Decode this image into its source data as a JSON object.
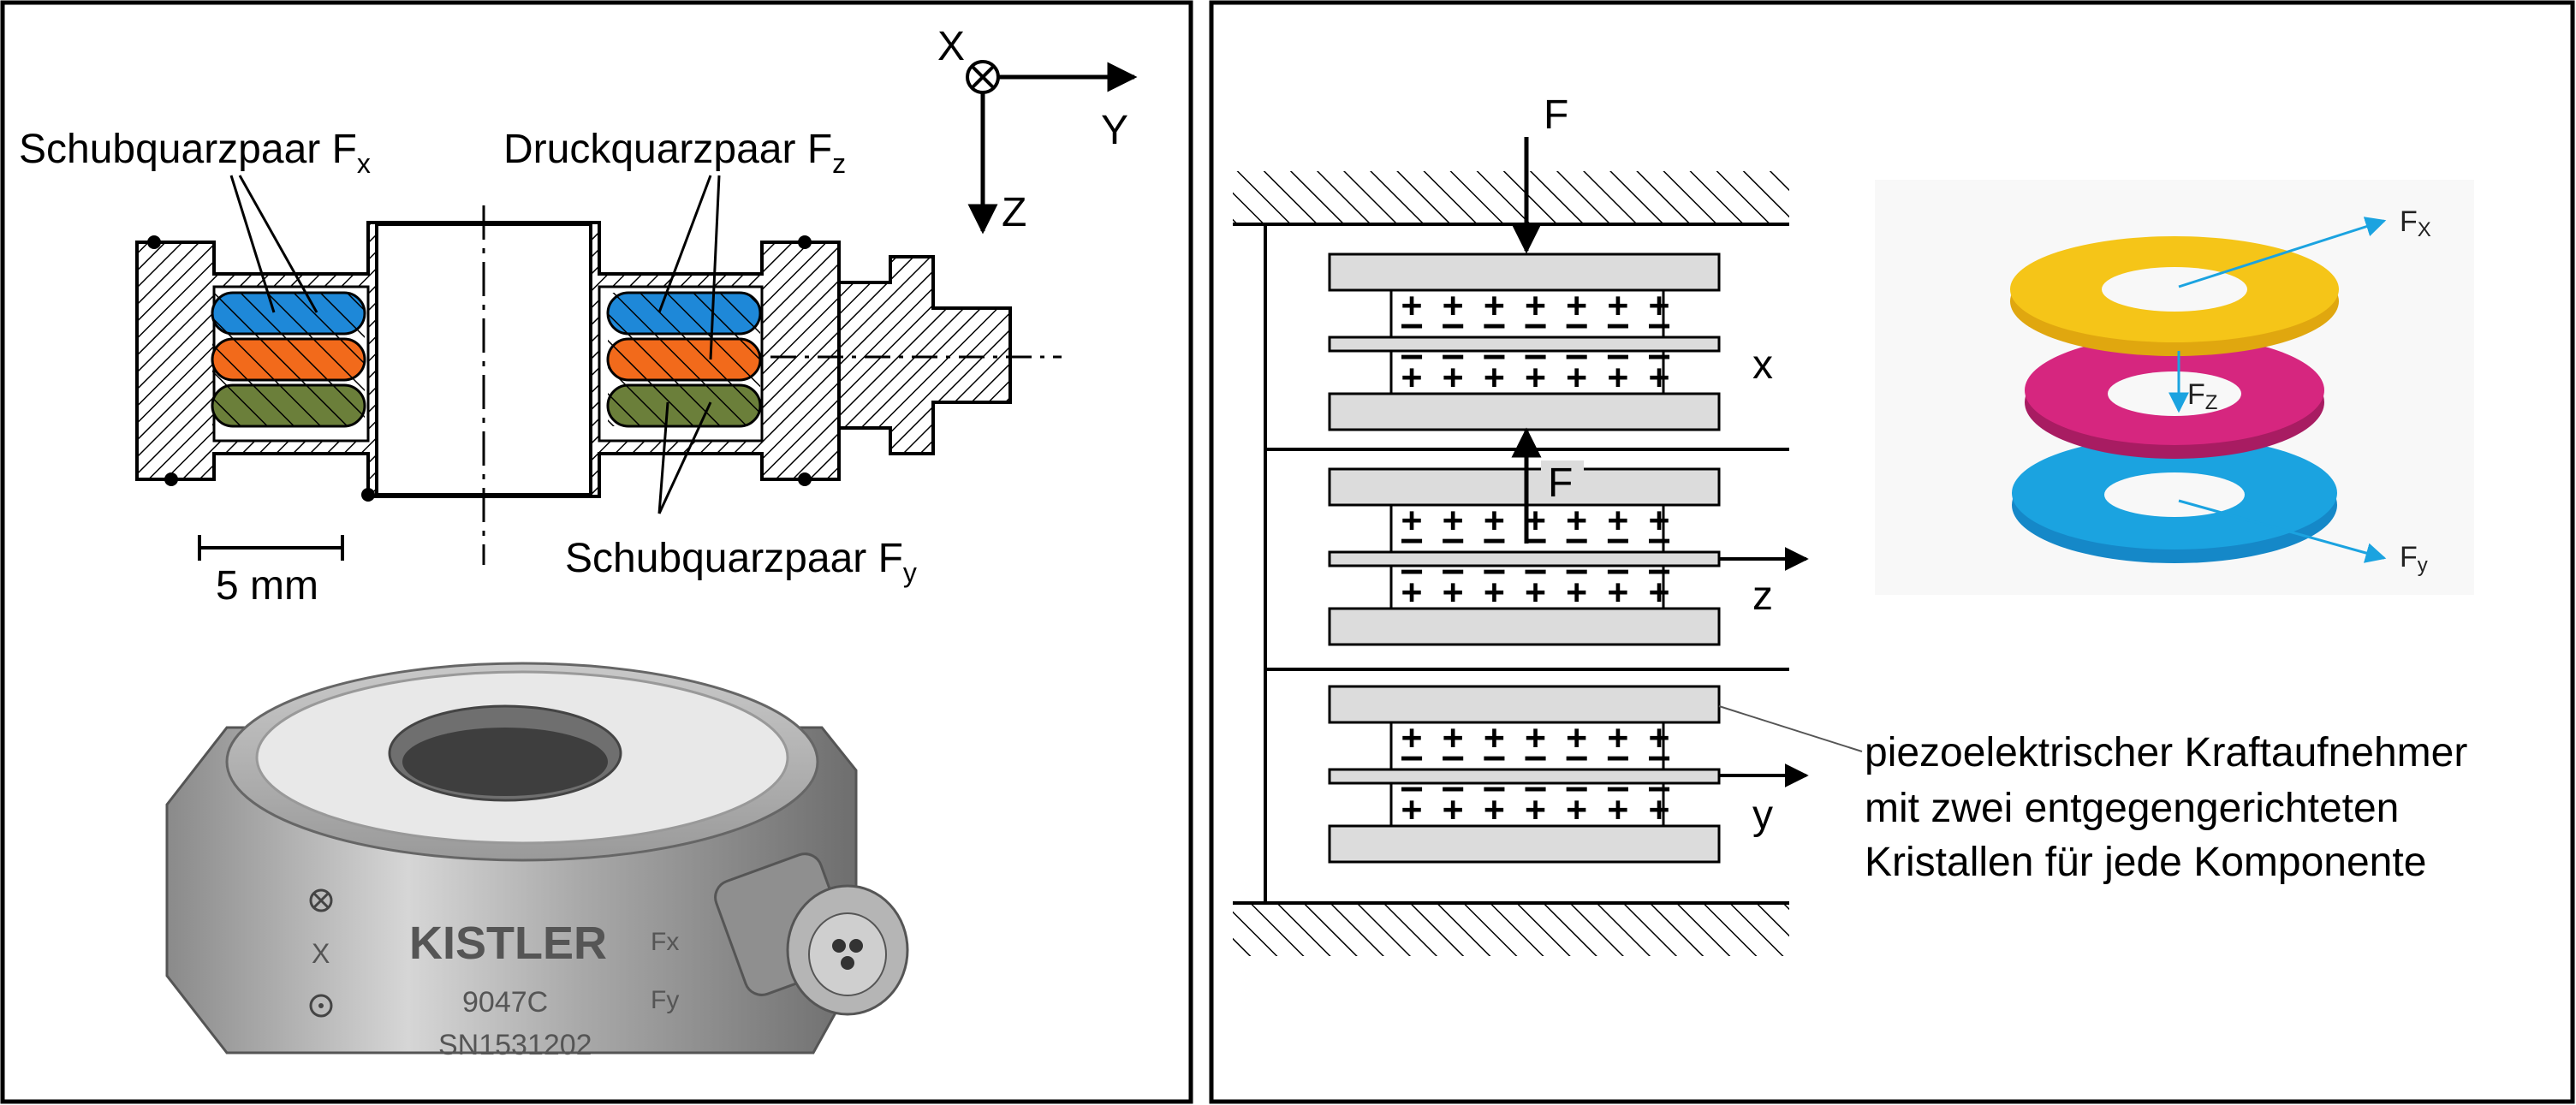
{
  "left": {
    "labels": {
      "schub_fx": "Schubquarzpaar F",
      "schub_fx_sub": "x",
      "druck_fz": "Druckquarzpaar F",
      "druck_fz_sub": "z",
      "schub_fy": "Schubquarzpaar F",
      "schub_fy_sub": "y",
      "scale": "5 mm"
    },
    "axes": {
      "x": "X",
      "y": "Y",
      "z": "Z"
    },
    "product": {
      "brand": "KISTLER",
      "model": "9047C",
      "serial": "SN1531202",
      "side_fx": "Fx",
      "side_fy": "Fy",
      "side_x": "X"
    }
  },
  "right": {
    "force_top": "F",
    "force_mid": "F",
    "axis_x": "x",
    "axis_z": "z",
    "axis_y": "y",
    "plus": "+ + + + + + +",
    "minus": "— — — — — — —",
    "description": [
      "piezoelektrischer Kraftaufnehmer",
      "mit zwei entgegengerichteten",
      "Kristallen für jede Komponente"
    ],
    "rings": {
      "fx": "F",
      "fx_sub": "X",
      "fz": "F",
      "fz_sub": "Z",
      "fy": "F",
      "fy_sub": "y"
    }
  },
  "colors": {
    "blue": "#1e88d8",
    "orange": "#f26a1b",
    "green": "#6b7f3a",
    "yellow": "#f5c518",
    "magenta": "#d6267f",
    "cyan": "#1ba3e0",
    "plate": "#dcdcdc"
  }
}
